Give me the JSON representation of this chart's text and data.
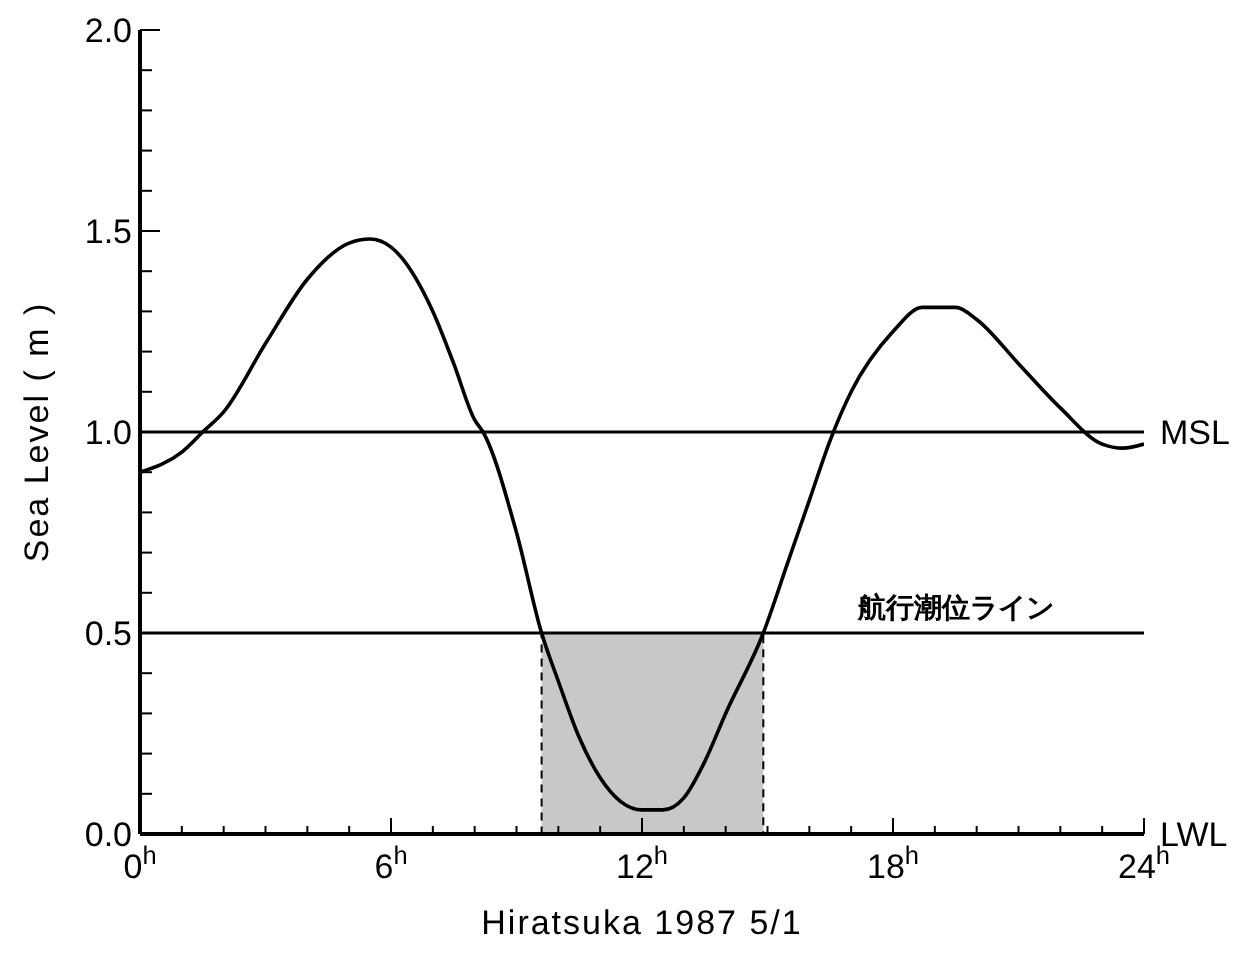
{
  "chart_data": {
    "type": "line",
    "xlabel": "Hiratsuka   1987 5/1",
    "ylabel": "Sea Level ( m )",
    "x": [
      0,
      1,
      1.5,
      2,
      3,
      4,
      5,
      5.5,
      6,
      7,
      7.5,
      8,
      8.2,
      9,
      9.6,
      10,
      10.5,
      11,
      11.5,
      12,
      12.5,
      13,
      13.5,
      14,
      14.9,
      15.5,
      16,
      16.5,
      17,
      18,
      18.7,
      19.5,
      20,
      21,
      22,
      23,
      23.5,
      24
    ],
    "series": [
      {
        "color": "#000000",
        "values": [
          0.9,
          0.95,
          1.0,
          1.05,
          1.22,
          1.38,
          1.47,
          1.48,
          1.46,
          1.3,
          1.17,
          1.03,
          1.0,
          0.75,
          0.5,
          0.38,
          0.24,
          0.14,
          0.08,
          0.06,
          0.06,
          0.09,
          0.18,
          0.3,
          0.5,
          0.68,
          0.83,
          0.98,
          1.1,
          1.25,
          1.31,
          1.31,
          1.28,
          1.17,
          1.06,
          0.97,
          0.96,
          0.97
        ]
      }
    ],
    "xlim": [
      0,
      24
    ],
    "xticks": [
      {
        "value": 0,
        "label": "0$^{h}$"
      },
      {
        "value": 1,
        "label": null
      },
      {
        "value": 2,
        "label": null
      },
      {
        "value": 3,
        "label": null
      },
      {
        "value": 4,
        "label": null
      },
      {
        "value": 5,
        "label": null
      },
      {
        "value": 6,
        "label": "6$^{h}$"
      },
      {
        "value": 7,
        "label": null
      },
      {
        "value": 8,
        "label": null
      },
      {
        "value": 9,
        "label": null
      },
      {
        "value": 10,
        "label": null
      },
      {
        "value": 11,
        "label": null
      },
      {
        "value": 12,
        "label": "12$^{h}$"
      },
      {
        "value": 13,
        "label": null
      },
      {
        "value": 14,
        "label": null
      },
      {
        "value": 15,
        "label": null
      },
      {
        "value": 16,
        "label": null
      },
      {
        "value": 17,
        "label": null
      },
      {
        "value": 18,
        "label": "18$^{h}$"
      },
      {
        "value": 19,
        "label": null
      },
      {
        "value": 20,
        "label": null
      },
      {
        "value": 21,
        "label": null
      },
      {
        "value": 22,
        "label": null
      },
      {
        "value": 23,
        "label": null
      },
      {
        "value": 24,
        "label": "24$^{h}$"
      }
    ],
    "ylim": [
      0,
      2.0
    ],
    "yticks": [
      {
        "value": 0,
        "label": "0.0"
      },
      {
        "value": 0.1,
        "label": null
      },
      {
        "value": 0.2,
        "label": null
      },
      {
        "value": 0.3,
        "label": null
      },
      {
        "value": 0.4,
        "label": null
      },
      {
        "value": 0.5,
        "label": "0.5"
      },
      {
        "value": 0.6,
        "label": null
      },
      {
        "value": 0.7,
        "label": null
      },
      {
        "value": 0.8,
        "label": null
      },
      {
        "value": 0.9,
        "label": null
      },
      {
        "value": 1.0,
        "label": "1.0"
      },
      {
        "value": 1.1,
        "label": null
      },
      {
        "value": 1.2,
        "label": null
      },
      {
        "value": 1.3,
        "label": null
      },
      {
        "value": 1.4,
        "label": null
      },
      {
        "value": 1.5,
        "label": "1.5"
      },
      {
        "value": 1.6,
        "label": null
      },
      {
        "value": 1.7,
        "label": null
      },
      {
        "value": 1.8,
        "label": null
      },
      {
        "value": 1.9,
        "label": null
      },
      {
        "value": 2.0,
        "label": "2.0"
      }
    ],
    "ref_lines": [
      {
        "axis": "y",
        "value": 1.0,
        "label": "MSL"
      },
      {
        "axis": "y",
        "value": 0.5
      }
    ],
    "bands": [
      {
        "axis": "x",
        "from": 9.6,
        "to": 14.9,
        "color": "#c8c8c8"
      }
    ],
    "annotations": [
      {
        "text": "航行潮位ライン",
        "x": 19.5,
        "y": 0.5
      },
      "LWL"
    ],
    "marker": "none",
    "line_style": "solid"
  }
}
